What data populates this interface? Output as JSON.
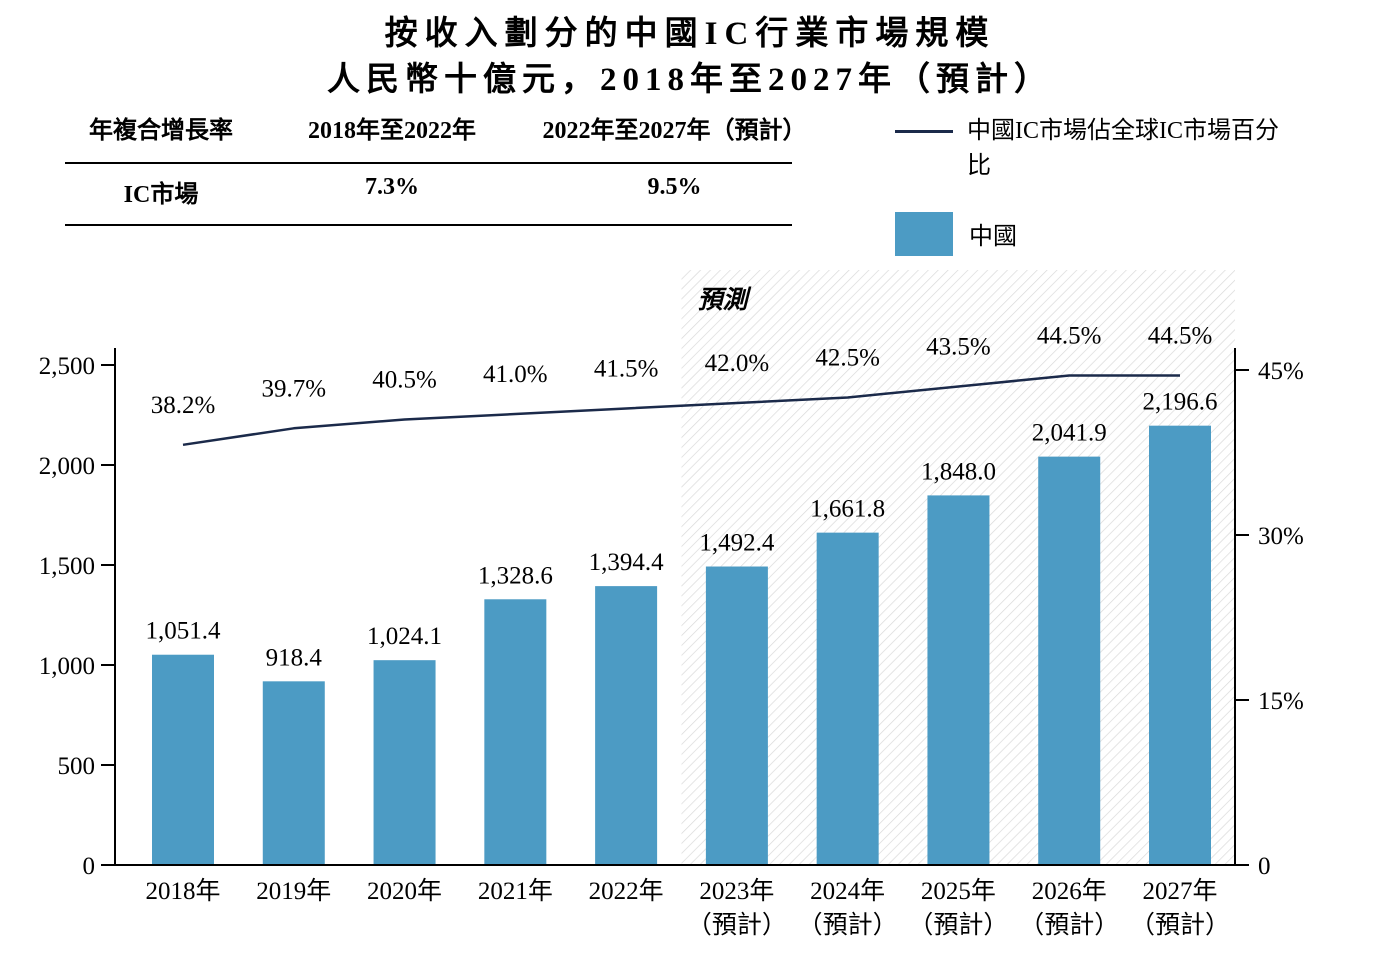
{
  "title": "按收入劃分的中國IC行業市場規模",
  "subtitle": "人民幣十億元，2018年至2027年（預計）",
  "cagr_table": {
    "header": [
      "年複合增長率",
      "2018年至2022年",
      "2022年至2027年（預計）"
    ],
    "row": [
      "IC市場",
      "7.3%",
      "9.5%"
    ]
  },
  "legend": {
    "line_label": "中國IC市場佔全球IC市場百分比",
    "bar_label": "中國"
  },
  "forecast_label": "預測",
  "chart_data": {
    "type": "bar+line",
    "title": "按收入劃分的中國IC行業市場規模",
    "subtitle": "人民幣十億元，2018年至2027年（預計）",
    "categories": [
      "2018年",
      "2019年",
      "2020年",
      "2021年",
      "2022年",
      "2023年",
      "2024年",
      "2025年",
      "2026年",
      "2027年"
    ],
    "category_sublabels": [
      "",
      "",
      "",
      "",
      "",
      "（預計）",
      "（預計）",
      "（預計）",
      "（預計）",
      "（預計）"
    ],
    "forecast_start_index": 5,
    "bar_series": {
      "name": "中國",
      "values": [
        1051.4,
        918.4,
        1024.1,
        1328.6,
        1394.4,
        1492.4,
        1661.8,
        1848.0,
        2041.9,
        2196.6
      ],
      "labels": [
        "1,051.4",
        "918.4",
        "1,024.1",
        "1,328.6",
        "1,394.4",
        "1,492.4",
        "1,661.8",
        "1,848.0",
        "2,041.9",
        "2,196.6"
      ]
    },
    "line_series": {
      "name": "中國IC市場佔全球IC市場百分比",
      "values": [
        38.2,
        39.7,
        40.5,
        41.0,
        41.5,
        42.0,
        42.5,
        43.5,
        44.5,
        44.5
      ],
      "labels": [
        "38.2%",
        "39.7%",
        "40.5%",
        "41.0%",
        "41.5%",
        "42.0%",
        "42.5%",
        "43.5%",
        "44.5%",
        "44.5%"
      ]
    },
    "left_axis": {
      "min": 0,
      "max": 2500,
      "ticks": [
        0,
        500,
        1000,
        1500,
        2000,
        2500
      ],
      "tick_labels": [
        "0",
        "500",
        "1,000",
        "1,500",
        "2,000",
        "2,500"
      ]
    },
    "right_axis": {
      "min": 0,
      "max": 45,
      "ticks": [
        0,
        15,
        30,
        45
      ],
      "tick_labels": [
        "0",
        "15%",
        "30%",
        "45%"
      ]
    },
    "bar_color": "#4C9BC4",
    "line_color": "#1B2A4A",
    "hatch_color": "#D9D9D9",
    "axis_color": "#000000"
  }
}
